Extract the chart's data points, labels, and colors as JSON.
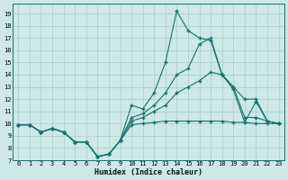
{
  "xlabel": "Humidex (Indice chaleur)",
  "background_color": "#cce8e8",
  "grid_color": "#aacccc",
  "line_color": "#1a7070",
  "xlim": [
    -0.5,
    23.5
  ],
  "ylim": [
    7,
    19.8
  ],
  "xticks": [
    0,
    1,
    2,
    3,
    4,
    5,
    6,
    7,
    8,
    9,
    10,
    11,
    12,
    13,
    14,
    15,
    16,
    17,
    18,
    19,
    20,
    21,
    22,
    23
  ],
  "yticks": [
    7,
    8,
    9,
    10,
    11,
    12,
    13,
    14,
    15,
    16,
    17,
    18,
    19
  ],
  "line1_x": [
    0,
    1,
    2,
    3,
    4,
    5,
    6,
    7,
    8,
    9,
    10,
    11,
    12,
    13,
    14,
    15,
    16,
    17,
    18,
    19,
    20,
    21,
    22,
    23
  ],
  "line1_y": [
    9.9,
    9.9,
    9.3,
    9.6,
    9.3,
    8.5,
    8.5,
    7.3,
    7.5,
    8.6,
    11.5,
    11.2,
    12.5,
    15.0,
    19.2,
    17.6,
    17.0,
    16.8,
    14.0,
    12.8,
    10.1,
    11.8,
    10.2,
    10.0
  ],
  "line2_x": [
    0,
    1,
    2,
    3,
    4,
    5,
    6,
    7,
    8,
    9,
    10,
    11,
    12,
    13,
    14,
    15,
    16,
    17,
    18,
    19,
    20,
    21,
    22,
    23
  ],
  "line2_y": [
    9.9,
    9.9,
    9.3,
    9.6,
    9.3,
    8.5,
    8.5,
    7.3,
    7.5,
    8.6,
    10.5,
    10.8,
    11.5,
    12.5,
    14.0,
    14.5,
    16.5,
    17.0,
    14.0,
    13.0,
    12.0,
    12.0,
    10.2,
    10.0
  ],
  "line3_x": [
    0,
    1,
    2,
    3,
    4,
    5,
    6,
    7,
    8,
    9,
    10,
    11,
    12,
    13,
    14,
    15,
    16,
    17,
    18,
    19,
    20,
    21,
    22,
    23
  ],
  "line3_y": [
    9.9,
    9.9,
    9.3,
    9.6,
    9.3,
    8.5,
    8.5,
    7.3,
    7.5,
    8.6,
    10.2,
    10.5,
    11.0,
    11.5,
    12.5,
    13.0,
    13.5,
    14.2,
    14.0,
    13.0,
    10.5,
    10.5,
    10.2,
    10.0
  ],
  "line4_x": [
    0,
    1,
    2,
    3,
    4,
    5,
    6,
    7,
    8,
    9,
    10,
    11,
    12,
    13,
    14,
    15,
    16,
    17,
    18,
    19,
    20,
    21,
    22,
    23
  ],
  "line4_y": [
    9.9,
    9.9,
    9.3,
    9.6,
    9.3,
    8.5,
    8.5,
    7.3,
    7.5,
    8.6,
    9.9,
    10.0,
    10.1,
    10.2,
    10.2,
    10.2,
    10.2,
    10.2,
    10.2,
    10.1,
    10.1,
    10.0,
    10.0,
    10.0
  ]
}
